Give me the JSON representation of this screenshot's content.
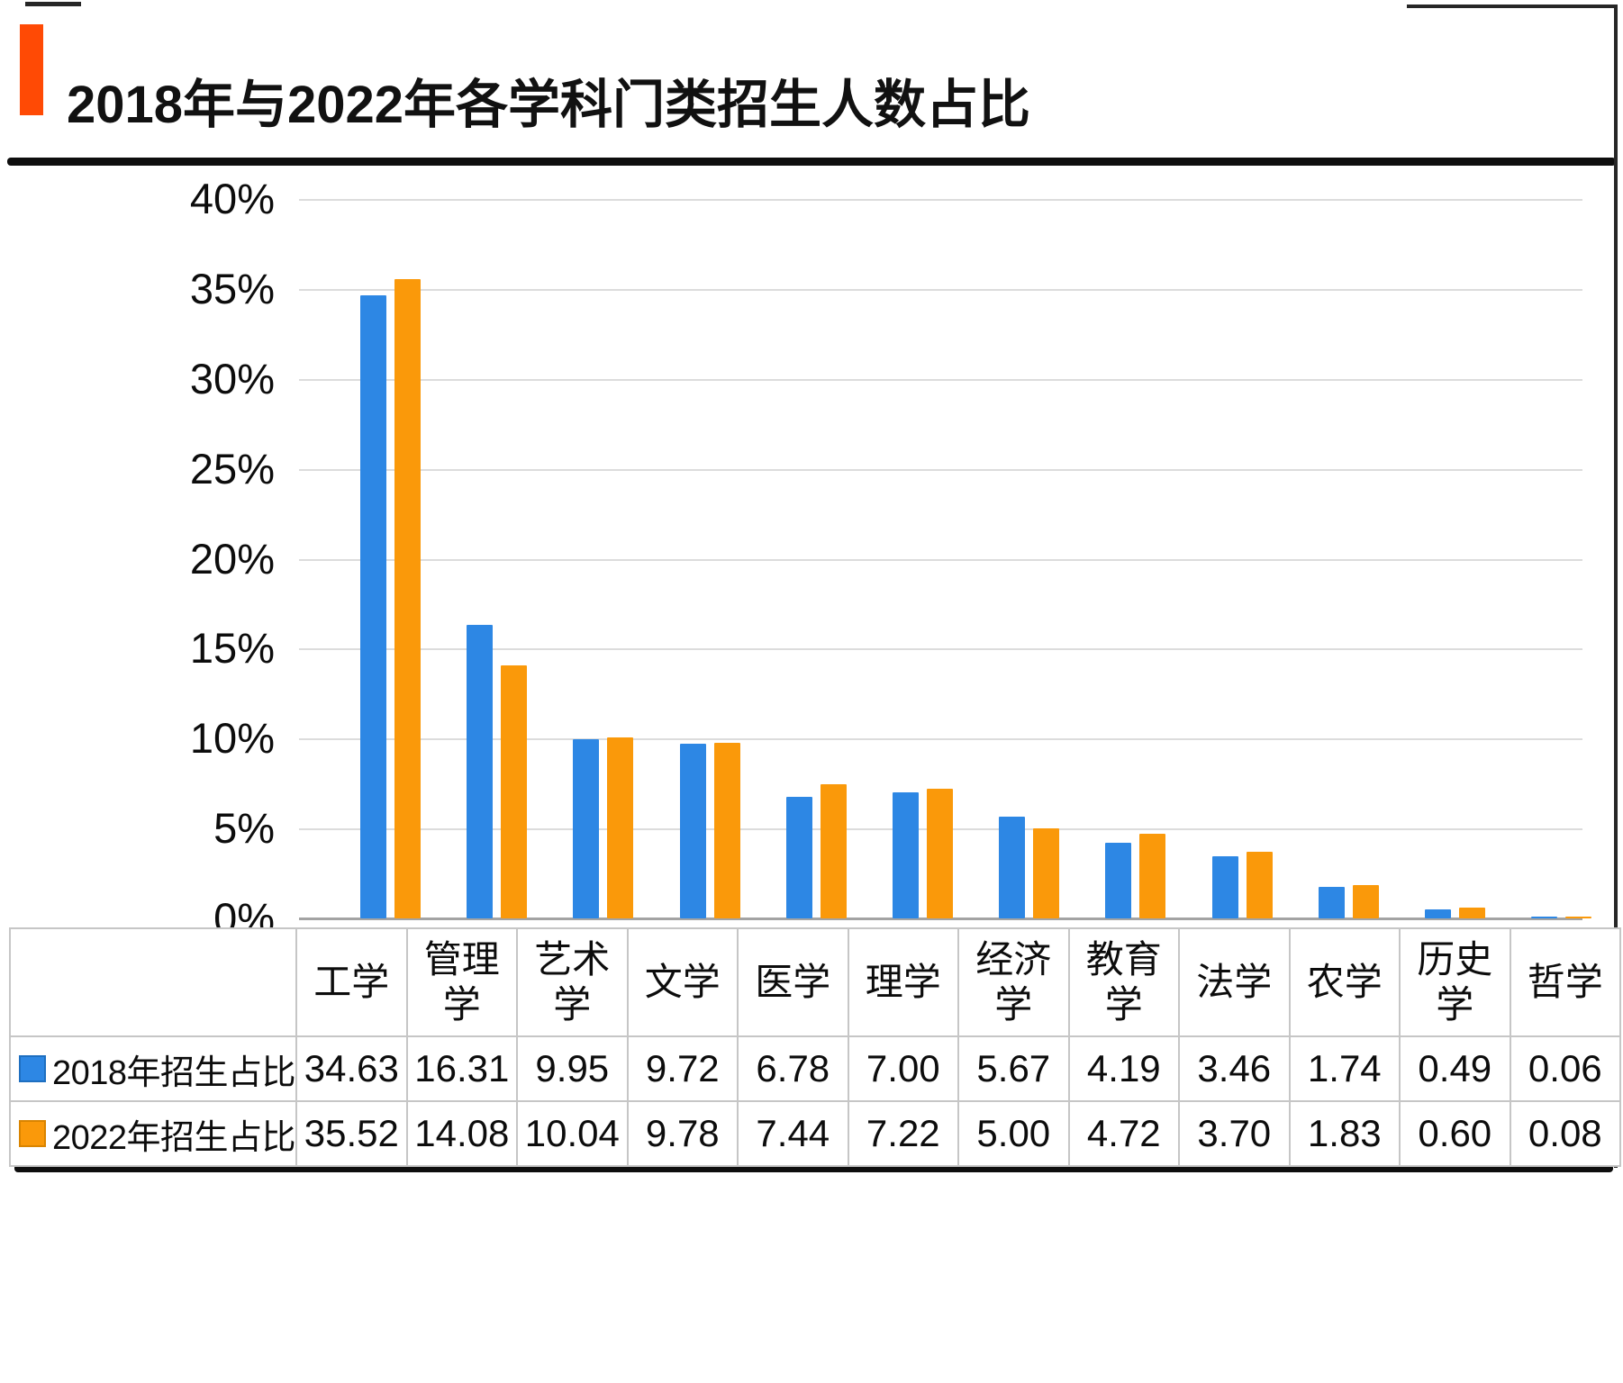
{
  "header": {
    "title": "2018年与2022年各学科门类招生人数占比",
    "accent_color": "#FF4A05"
  },
  "chart_data": {
    "type": "bar",
    "title": "2018年与2022年各学科门类招生人数占比",
    "categories": [
      "工学",
      "管理学",
      "艺术学",
      "文学",
      "医学",
      "理学",
      "经济学",
      "教育学",
      "法学",
      "农学",
      "历史学",
      "哲学"
    ],
    "series": [
      {
        "name": "2018年招生占比",
        "color": "#2D87E4",
        "swatch_border": "#1E6FC0",
        "values": [
          34.63,
          16.31,
          9.95,
          9.72,
          6.78,
          7.0,
          5.67,
          4.19,
          3.46,
          1.74,
          0.49,
          0.06
        ]
      },
      {
        "name": "2022年招生占比",
        "color": "#FA990A",
        "swatch_border": "#D98400",
        "values": [
          35.52,
          14.08,
          10.04,
          9.78,
          7.44,
          7.22,
          5.0,
          4.72,
          3.7,
          1.83,
          0.6,
          0.08
        ]
      }
    ],
    "xlabel": "",
    "ylabel": "",
    "ylim": [
      0,
      40
    ],
    "ytick_step": 5,
    "ytick_labels": [
      "40%",
      "35%",
      "30%",
      "25%",
      "20%",
      "15%",
      "10%",
      "5%",
      "0%"
    ],
    "grid": true,
    "gridline_color": "#dcdcdc",
    "axis_line_color": "#a3a3a3",
    "value_decimals": 2,
    "legend_position": "table-rows-left",
    "table_border_color": "#c6c6c6"
  }
}
